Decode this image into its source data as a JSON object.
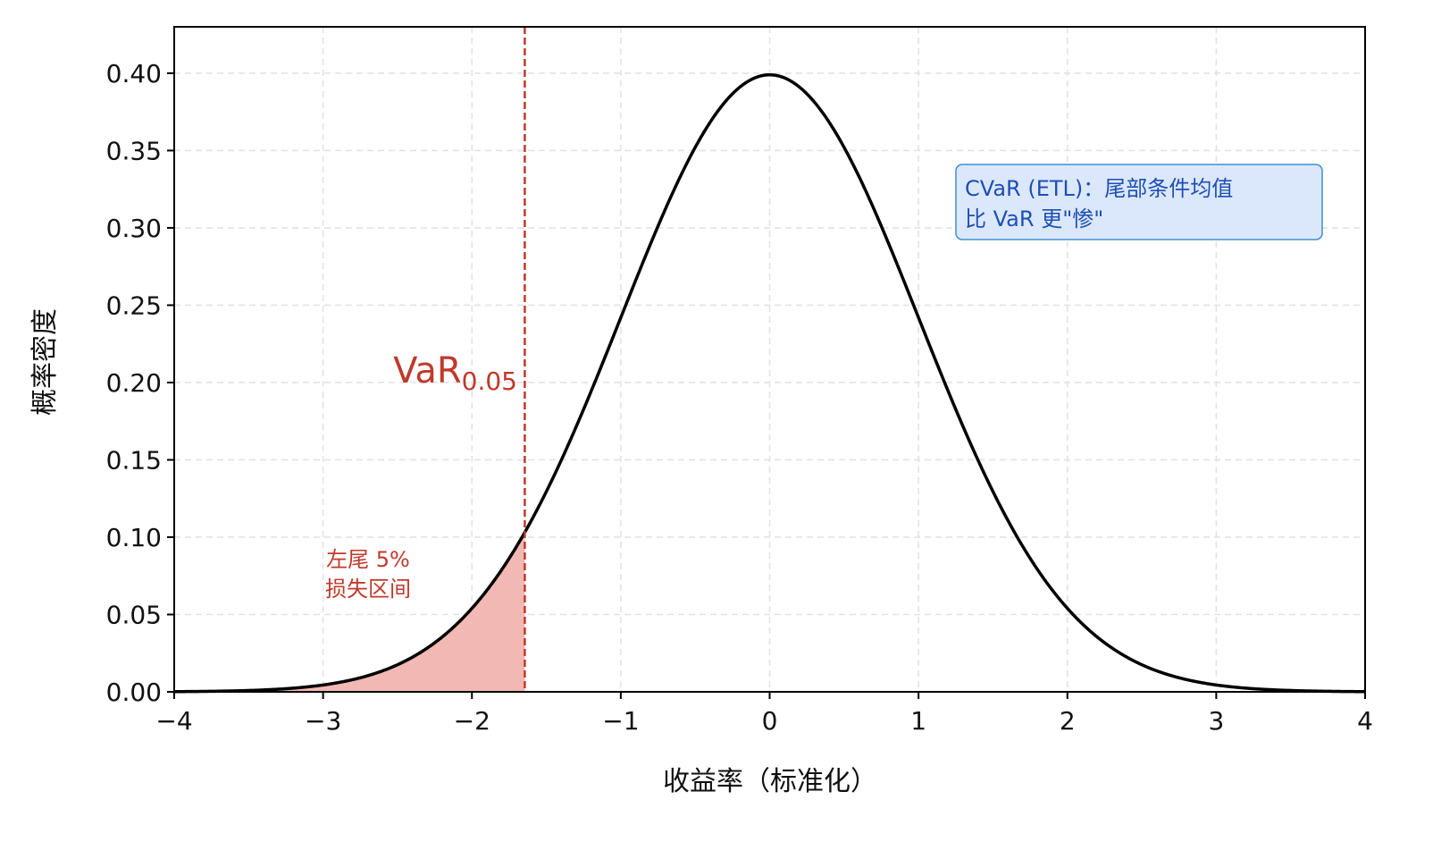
{
  "chart_data": {
    "type": "area",
    "xlabel": "收益率（标准化）",
    "ylabel": "概率密度",
    "xlim": [
      -4,
      4
    ],
    "ylim": [
      0,
      0.43
    ],
    "xticks": [
      -4,
      -3,
      -2,
      -1,
      0,
      1,
      2,
      3,
      4
    ],
    "xtick_labels": [
      "−4",
      "−3",
      "−2",
      "−1",
      "0",
      "1",
      "2",
      "3",
      "4"
    ],
    "yticks": [
      0,
      0.05,
      0.1,
      0.15,
      0.2,
      0.25,
      0.3,
      0.35,
      0.4
    ],
    "ytick_labels": [
      "0.00",
      "0.05",
      "0.10",
      "0.15",
      "0.20",
      "0.25",
      "0.30",
      "0.35",
      "0.40"
    ],
    "grid": true,
    "series": [
      {
        "kind": "line",
        "color": "#000000",
        "x": [
          -4,
          -3.5,
          -3,
          -2.5,
          -2,
          -1.645,
          -1.5,
          -1,
          -0.5,
          0,
          0.5,
          1,
          1.5,
          2,
          2.5,
          3,
          3.5,
          4
        ],
        "values": [
          0.0001,
          0.0009,
          0.0044,
          0.0175,
          0.054,
          0.1031,
          0.1295,
          0.242,
          0.3521,
          0.3989,
          0.3521,
          0.242,
          0.1295,
          0.054,
          0.0175,
          0.0044,
          0.0009,
          0.0001
        ]
      }
    ],
    "shaded_region": {
      "x_from": -4,
      "x_to": -1.645,
      "color": "#f2b8b3"
    },
    "vline": {
      "x": -1.645,
      "color": "#c0392b"
    },
    "annotations": {
      "var_main": "VaR",
      "var_sub": "0.05",
      "tail_line1": "左尾 5%",
      "tail_line2": "损失区间",
      "cvar_line1": "CVaR (ETL)：尾部条件均值",
      "cvar_line2": "比 VaR 更\"惨\""
    },
    "colors": {
      "accent": "#c0392b",
      "cvar_text": "#1f4fb3",
      "cvar_box_fill": "#dbe8fb",
      "cvar_box_border": "#3d8fd6"
    }
  }
}
